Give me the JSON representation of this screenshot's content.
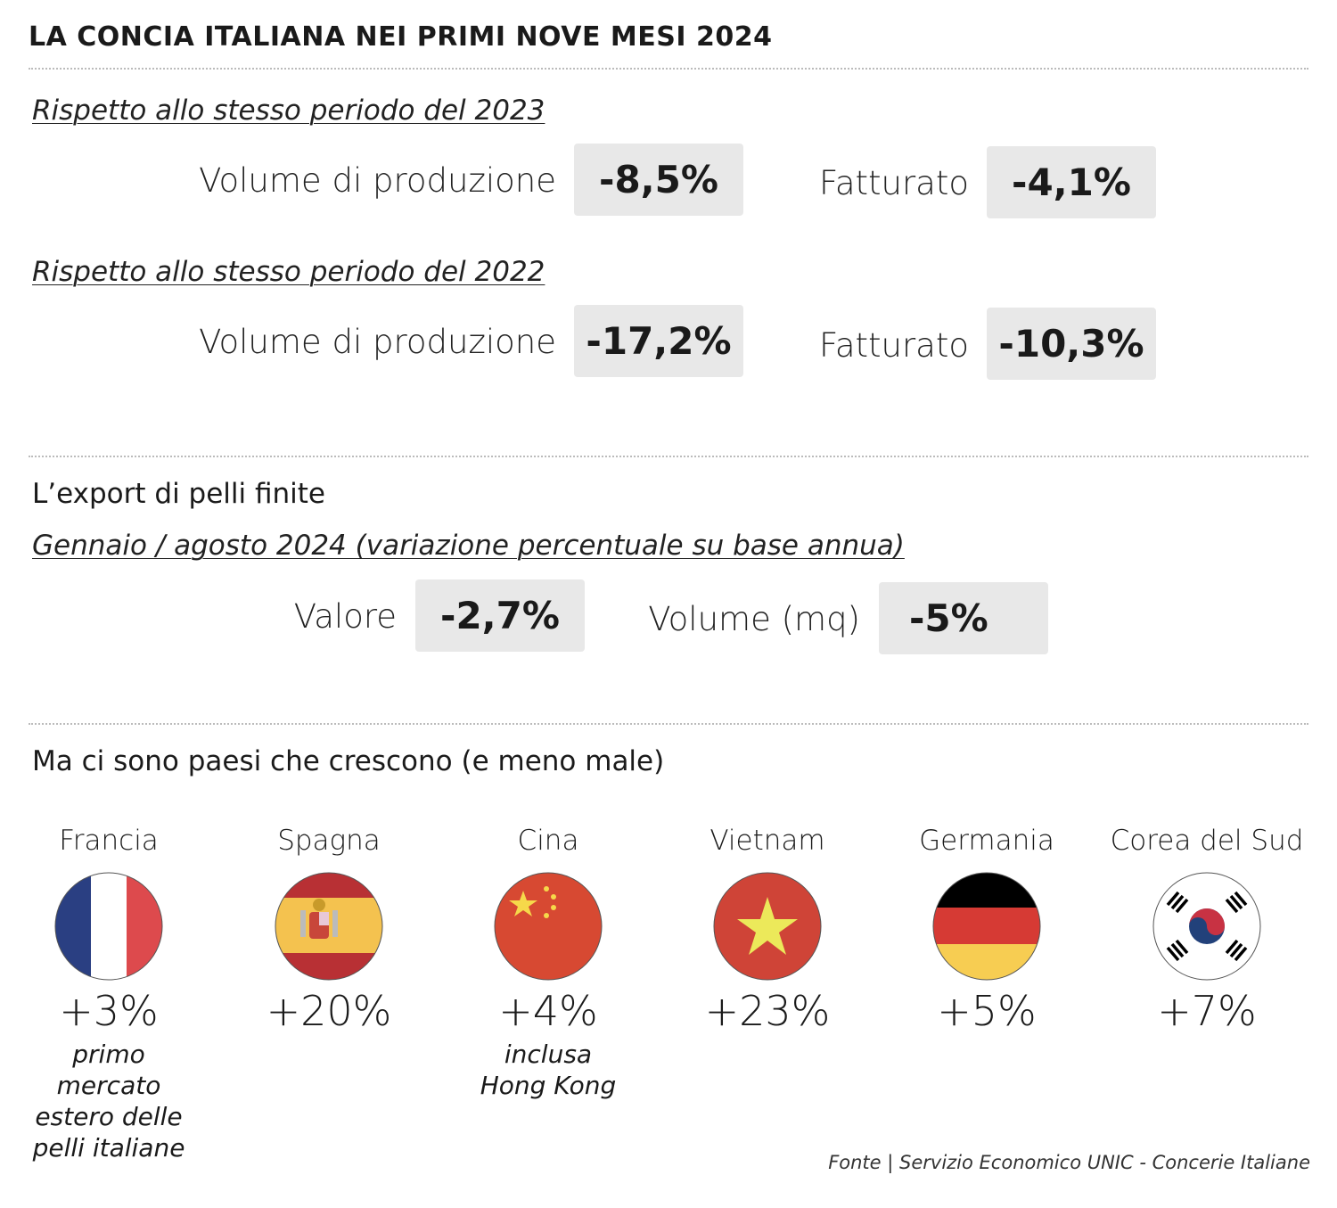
{
  "title": "LA CONCIA ITALIANA NEI PRIMI NOVE MESI 2024",
  "vs2023": {
    "heading": "Rispetto allo stesso periodo del 2023",
    "volume_label": "Volume di produzione",
    "volume_value": "-8,5%",
    "revenue_label": "Fatturato",
    "revenue_value": "-4,1%"
  },
  "vs2022": {
    "heading": "Rispetto allo stesso periodo del 2022",
    "volume_label": "Volume di produzione",
    "volume_value": "-17,2%",
    "revenue_label": "Fatturato",
    "revenue_value": "-10,3%"
  },
  "export": {
    "heading": "L’export di pelli finite",
    "subheading": "Gennaio / agosto 2024 (variazione percentuale su base annua)",
    "value_label": "Valore",
    "value_value": "-2,7%",
    "volume_label": "Volume (mq)",
    "volume_value": "-5%"
  },
  "countries_heading": "Ma ci sono paesi che crescono (e meno male)",
  "countries": [
    {
      "name": "Francia",
      "value": "+3%",
      "note": [
        "primo",
        "mercato",
        "estero delle",
        "pelli italiane"
      ],
      "flag": "france-flag"
    },
    {
      "name": "Spagna",
      "value": "+20%",
      "note": [],
      "flag": "spain-flag"
    },
    {
      "name": "Cina",
      "value": "+4%",
      "note": [
        "inclusa",
        "Hong Kong"
      ],
      "flag": "china-flag"
    },
    {
      "name": "Vietnam",
      "value": "+23%",
      "note": [],
      "flag": "vietnam-flag"
    },
    {
      "name": "Germania",
      "value": "+5%",
      "note": [],
      "flag": "germany-flag"
    },
    {
      "name": "Corea del Sud",
      "value": "+7%",
      "note": [],
      "flag": "south-korea-flag"
    }
  ],
  "source": "Fonte | Servizio Economico UNIC - Concerie Italiane",
  "colors": {
    "box_bg": "#e8e8e8",
    "text": "#1a1a1a"
  }
}
